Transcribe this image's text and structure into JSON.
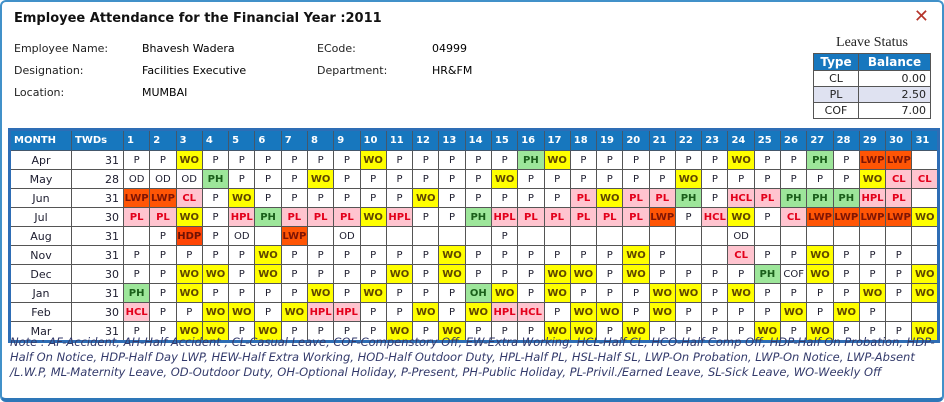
{
  "window": {
    "title": "Employee Attendance for the Financial Year :2011",
    "close_icon": "✕"
  },
  "employee": {
    "name_label": "Employee Name:",
    "name": "Bhavesh Wadera",
    "ecode_label": "ECode:",
    "ecode": "04999",
    "designation_label": "Designation:",
    "designation": "Facilities Executive",
    "department_label": "Department:",
    "department": "HR&FM",
    "location_label": "Location:",
    "location": "MUMBAI"
  },
  "leave_status": {
    "title": "Leave Status",
    "columns": [
      "Type",
      "Balance"
    ],
    "rows": [
      [
        "CL",
        "0.00"
      ],
      [
        "PL",
        "2.50"
      ],
      [
        "COF",
        "7.00"
      ]
    ]
  },
  "attendance": {
    "month_header": "MONTH",
    "twds_header": "TWDs",
    "day_headers": [
      "1",
      "2",
      "3",
      "4",
      "5",
      "6",
      "7",
      "8",
      "9",
      "10",
      "11",
      "12",
      "13",
      "14",
      "15",
      "16",
      "17",
      "18",
      "19",
      "20",
      "21",
      "22",
      "23",
      "24",
      "25",
      "26",
      "27",
      "28",
      "29",
      "30",
      "31"
    ],
    "rows": [
      {
        "month": "Apr",
        "twds": "31",
        "days": [
          "P",
          "P",
          "WO",
          "P",
          "P",
          "P",
          "P",
          "P",
          "P",
          "WO",
          "P",
          "P",
          "P",
          "P",
          "P",
          "PH",
          "WO",
          "P",
          "P",
          "P",
          "P",
          "P",
          "P",
          "WO",
          "P",
          "P",
          "PH",
          "P",
          "LWP",
          "LWP",
          ""
        ]
      },
      {
        "month": "May",
        "twds": "28",
        "days": [
          "OD",
          "OD",
          "OD",
          "PH",
          "P",
          "P",
          "P",
          "WO",
          "P",
          "P",
          "P",
          "P",
          "P",
          "P",
          "WO",
          "P",
          "P",
          "P",
          "P",
          "P",
          "P",
          "WO",
          "P",
          "P",
          "P",
          "P",
          "P",
          "P",
          "WO",
          "CL",
          "CL"
        ]
      },
      {
        "month": "Jun",
        "twds": "31",
        "days": [
          "LWP",
          "LWP",
          "CL",
          "P",
          "WO",
          "P",
          "P",
          "P",
          "P",
          "P",
          "P",
          "WO",
          "P",
          "P",
          "P",
          "P",
          "P",
          "PL",
          "WO",
          "PL",
          "PL",
          "PH",
          "P",
          "HCL",
          "PL",
          "PH",
          "PH",
          "PH",
          "HPL",
          "PL",
          ""
        ]
      },
      {
        "month": "Jul",
        "twds": "30",
        "days": [
          "PL",
          "PL",
          "WO",
          "P",
          "HPL",
          "PH",
          "PL",
          "PL",
          "PL",
          "WO",
          "HPL",
          "P",
          "P",
          "PH",
          "HPL",
          "PL",
          "PL",
          "PL",
          "PL",
          "PL",
          "LWP",
          "P",
          "HCL",
          "WO",
          "P",
          "CL",
          "LWP",
          "LWP",
          "LWP",
          "LWP",
          "WO"
        ]
      },
      {
        "month": "Aug",
        "twds": "31",
        "days": [
          "",
          "P",
          "HDP",
          "P",
          "OD",
          "",
          "LWP",
          "",
          "OD",
          "",
          "",
          "",
          "",
          "",
          "P",
          "",
          "",
          "",
          "",
          "",
          "",
          "",
          "",
          "OD",
          "",
          "",
          "",
          "",
          "",
          "",
          ""
        ]
      },
      {
        "month": "Nov",
        "twds": "31",
        "days": [
          "P",
          "P",
          "P",
          "P",
          "P",
          "WO",
          "P",
          "P",
          "P",
          "P",
          "P",
          "P",
          "WO",
          "P",
          "P",
          "P",
          "P",
          "P",
          "P",
          "WO",
          "P",
          "",
          "",
          "CL",
          "P",
          "P",
          "WO",
          "P",
          "P",
          "P",
          ""
        ]
      },
      {
        "month": "Dec",
        "twds": "30",
        "days": [
          "P",
          "P",
          "WO",
          "WO",
          "P",
          "WO",
          "P",
          "P",
          "P",
          "P",
          "WO",
          "P",
          "WO",
          "P",
          "P",
          "P",
          "WO",
          "WO",
          "P",
          "WO",
          "P",
          "P",
          "P",
          "P",
          "PH",
          "COF",
          "WO",
          "P",
          "P",
          "P",
          "WO"
        ]
      },
      {
        "month": "Jan",
        "twds": "31",
        "days": [
          "PH",
          "P",
          "WO",
          "P",
          "P",
          "P",
          "P",
          "WO",
          "P",
          "WO",
          "P",
          "P",
          "P",
          "OH",
          "WO",
          "P",
          "WO",
          "P",
          "P",
          "P",
          "WO",
          "WO",
          "P",
          "WO",
          "P",
          "P",
          "P",
          "P",
          "WO",
          "P",
          "WO"
        ]
      },
      {
        "month": "Feb",
        "twds": "30",
        "days": [
          "HCL",
          "P",
          "P",
          "WO",
          "WO",
          "P",
          "WO",
          "HPL",
          "HPL",
          "P",
          "P",
          "WO",
          "P",
          "WO",
          "HPL",
          "HCL",
          "P",
          "WO",
          "WO",
          "P",
          "WO",
          "P",
          "P",
          "P",
          "P",
          "WO",
          "P",
          "WO",
          "P",
          "",
          ""
        ]
      },
      {
        "month": "Mar",
        "twds": "31",
        "days": [
          "P",
          "P",
          "WO",
          "WO",
          "P",
          "WO",
          "P",
          "P",
          "P",
          "P",
          "WO",
          "P",
          "WO",
          "P",
          "P",
          "P",
          "WO",
          "WO",
          "P",
          "WO",
          "P",
          "P",
          "P",
          "P",
          "WO",
          "P",
          "WO",
          "P",
          "P",
          "P",
          "WO"
        ]
      }
    ]
  },
  "note": "Note : AF-Accident, AH-Half Accident , CL-Casual Leave, COF-Compenstory Off, EW-Extra Working, HCL-Half CL, HCO-Half Comp Off, HDP-Half On Probation, HDP-Half On Notice, HDP-Half Day LWP, HEW-Half Extra Working, HOD-Half Outdoor Duty, HPL-Half PL, HSL-Half SL, LWP-On Probation, LWP-On Notice, LWP-Absent /L.W.P, ML-Maternity Leave, OD-Outdoor Duty, OH-Optional Holiday, P-Present, PH-Public Holiday, PL-Privil./Earned Leave, SL-Sick Leave, WO-Weekly Off",
  "colors": {
    "header_bg": "#1777be",
    "header_fg": "#ffffff",
    "close_icon": "#b5342a",
    "window_border": "#4191c9",
    "code_styles": {
      "WO": {
        "bg": "#ffff00",
        "fg": "#5f4600"
      },
      "PH": {
        "bg": "#9de69a",
        "fg": "#1a5e1a"
      },
      "OH": {
        "bg": "#9de69a",
        "fg": "#1a5e1a"
      },
      "CL": {
        "bg": "#ffc4cf",
        "fg": "#e3001b"
      },
      "PL": {
        "bg": "#ffc4cf",
        "fg": "#e3001b"
      },
      "HPL": {
        "bg": "#ffc4cf",
        "fg": "#e3001b"
      },
      "HCL": {
        "bg": "#ffc4cf",
        "fg": "#e3001b"
      },
      "LWP": {
        "bg": "#ff5505",
        "fg": "#7e1505"
      },
      "HDP": {
        "bg": "#ff4505",
        "fg": "#6e1205"
      }
    }
  }
}
